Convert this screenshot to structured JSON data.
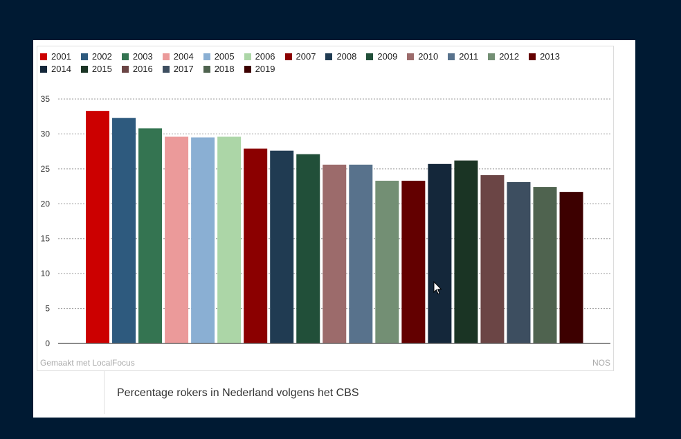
{
  "chart_data": {
    "type": "bar",
    "categories": [
      "2001",
      "2002",
      "2003",
      "2004",
      "2005",
      "2006",
      "2007",
      "2008",
      "2009",
      "2010",
      "2011",
      "2012",
      "2013",
      "2014",
      "2015",
      "2016",
      "2017",
      "2018",
      "2019"
    ],
    "values": [
      33.3,
      32.3,
      30.8,
      29.6,
      29.5,
      29.6,
      27.9,
      27.6,
      27.1,
      25.6,
      25.6,
      23.3,
      23.3,
      25.7,
      26.2,
      24.1,
      23.1,
      22.4,
      21.7
    ],
    "colors": [
      "#cc0000",
      "#2e5a7e",
      "#347451",
      "#eb9a9a",
      "#8aafd3",
      "#acd6a7",
      "#8b0000",
      "#203b52",
      "#214f39",
      "#9c6b6b",
      "#58728c",
      "#738f74",
      "#630000",
      "#14273a",
      "#1a3424",
      "#6b4545",
      "#3d4e60",
      "#4f634f",
      "#3d0000"
    ],
    "ylim": [
      0,
      35
    ],
    "yticks": [
      0,
      5,
      10,
      15,
      20,
      25,
      30,
      35
    ],
    "grid": true,
    "legend_position": "top"
  },
  "footer": {
    "credit": "Gemaakt met LocalFocus",
    "source": "NOS"
  },
  "caption": "Percentage rokers in Nederland volgens het CBS"
}
